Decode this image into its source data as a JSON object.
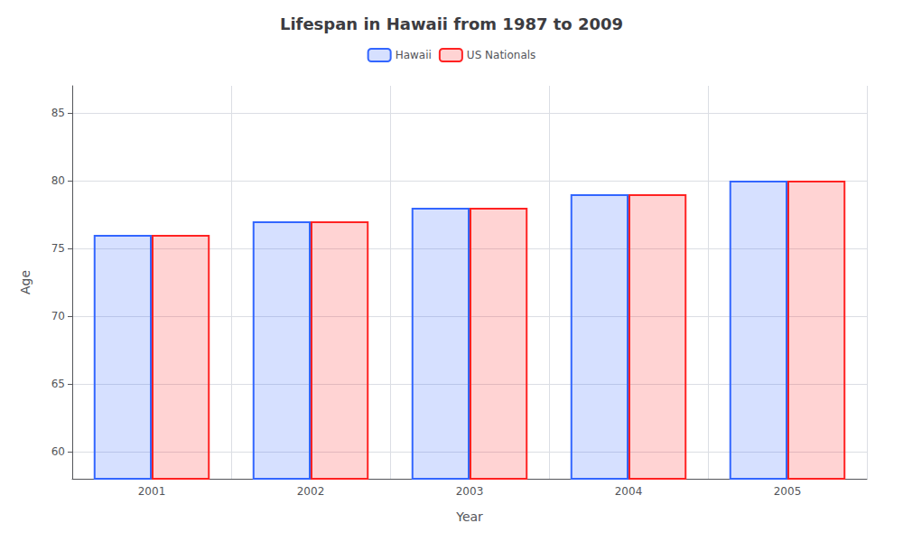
{
  "chart_data": {
    "type": "bar",
    "title": "Lifespan in Hawaii from 1987 to 2009",
    "x_label": "Year",
    "y_label": "Age",
    "categories": [
      "2001",
      "2002",
      "2003",
      "2004",
      "2005"
    ],
    "series": [
      {
        "name": "Hawaii",
        "color": "#3366ff",
        "values": [
          76,
          77,
          78,
          79,
          80
        ]
      },
      {
        "name": "US Nationals",
        "color": "#ff2222",
        "values": [
          76,
          77,
          78,
          79,
          80
        ]
      }
    ],
    "ylim": [
      58,
      87
    ],
    "yticks": [
      60,
      65,
      70,
      75,
      80,
      85
    ],
    "grid": true,
    "legend": "top"
  }
}
